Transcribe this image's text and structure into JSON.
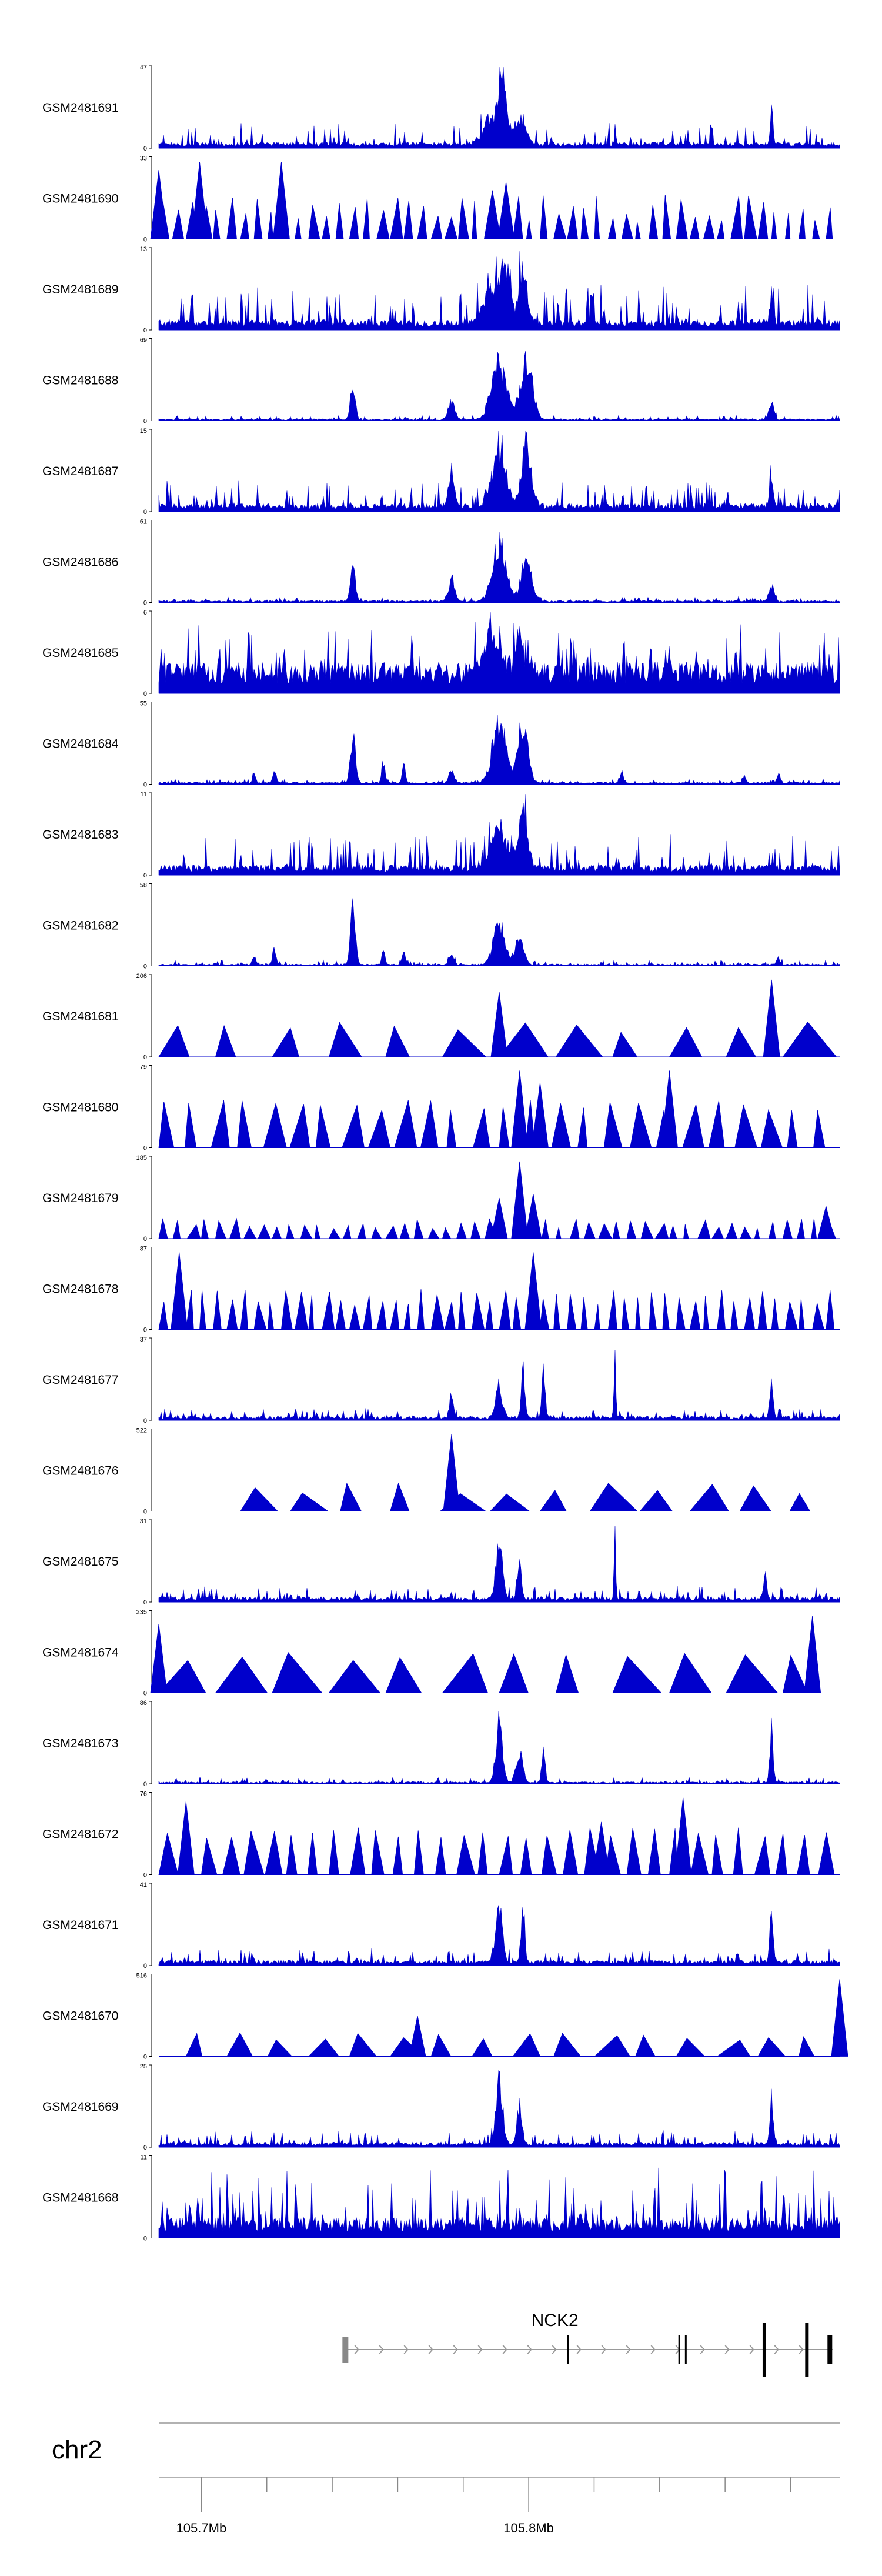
{
  "chart_data": {
    "type": "area",
    "title": "",
    "chromosome": "chr2",
    "x_range_mb": [
      105.687,
      105.895
    ],
    "x_ticks": [
      {
        "value": 105.7,
        "label": "105.7Mb"
      },
      {
        "value": 105.72
      },
      {
        "value": 105.74
      },
      {
        "value": 105.76
      },
      {
        "value": 105.78
      },
      {
        "value": 105.8,
        "label": "105.8Mb"
      },
      {
        "value": 105.82
      },
      {
        "value": 105.84
      },
      {
        "value": 105.86
      },
      {
        "value": 105.88
      }
    ],
    "series_color": "#0000cc",
    "tracks": [
      {
        "name": "GSM2481691",
        "ymax": 47,
        "style": "dense",
        "base": 0.06,
        "noise": 0.25,
        "peaks": [
          {
            "x": 0.49,
            "w": 0.02,
            "h": 0.45
          },
          {
            "x": 0.505,
            "w": 0.008,
            "h": 1.0
          },
          {
            "x": 0.53,
            "w": 0.015,
            "h": 0.35
          },
          {
            "x": 0.9,
            "w": 0.003,
            "h": 0.6
          }
        ]
      },
      {
        "name": "GSM2481690",
        "ymax": 33,
        "style": "sparse",
        "segments": 50,
        "hmin": 0.2,
        "hmax": 0.55,
        "spikes": [
          {
            "x": 0.0,
            "h": 0.85
          },
          {
            "x": 0.06,
            "h": 0.95
          },
          {
            "x": 0.18,
            "h": 0.95
          },
          {
            "x": 0.49,
            "h": 0.6
          },
          {
            "x": 0.51,
            "h": 0.7
          }
        ]
      },
      {
        "name": "GSM2481689",
        "ymax": 13,
        "style": "dense",
        "base": 0.1,
        "noise": 0.45,
        "peaks": [
          {
            "x": 0.49,
            "w": 0.02,
            "h": 0.55
          },
          {
            "x": 0.51,
            "w": 0.01,
            "h": 0.85
          },
          {
            "x": 0.535,
            "w": 0.01,
            "h": 0.8
          },
          {
            "x": 0.9,
            "w": 0.004,
            "h": 0.5
          }
        ]
      },
      {
        "name": "GSM2481688",
        "ymax": 69,
        "style": "dense",
        "base": 0.02,
        "noise": 0.05,
        "peaks": [
          {
            "x": 0.285,
            "w": 0.006,
            "h": 0.5
          },
          {
            "x": 0.43,
            "w": 0.008,
            "h": 0.3
          },
          {
            "x": 0.5,
            "w": 0.018,
            "h": 0.85
          },
          {
            "x": 0.54,
            "w": 0.014,
            "h": 0.95
          },
          {
            "x": 0.9,
            "w": 0.006,
            "h": 0.25
          }
        ]
      },
      {
        "name": "GSM2481687",
        "ymax": 15,
        "style": "dense",
        "base": 0.08,
        "noise": 0.3,
        "peaks": [
          {
            "x": 0.43,
            "w": 0.008,
            "h": 0.4
          },
          {
            "x": 0.5,
            "w": 0.018,
            "h": 0.75
          },
          {
            "x": 0.54,
            "w": 0.012,
            "h": 0.95
          },
          {
            "x": 0.9,
            "w": 0.005,
            "h": 0.35
          }
        ]
      },
      {
        "name": "GSM2481686",
        "ymax": 61,
        "style": "dense",
        "base": 0.02,
        "noise": 0.05,
        "peaks": [
          {
            "x": 0.285,
            "w": 0.006,
            "h": 0.55
          },
          {
            "x": 0.43,
            "w": 0.008,
            "h": 0.3
          },
          {
            "x": 0.5,
            "w": 0.016,
            "h": 0.95
          },
          {
            "x": 0.54,
            "w": 0.012,
            "h": 0.7
          },
          {
            "x": 0.9,
            "w": 0.006,
            "h": 0.25
          }
        ]
      },
      {
        "name": "GSM2481685",
        "ymax": 6,
        "style": "dense",
        "base": 0.3,
        "noise": 0.5,
        "peaks": [
          {
            "x": 0.49,
            "w": 0.02,
            "h": 0.6
          },
          {
            "x": 0.53,
            "w": 0.01,
            "h": 0.55
          }
        ]
      },
      {
        "name": "GSM2481684",
        "ymax": 55,
        "style": "dense",
        "base": 0.02,
        "noise": 0.04,
        "peaks": [
          {
            "x": 0.14,
            "w": 0.004,
            "h": 0.15
          },
          {
            "x": 0.17,
            "w": 0.004,
            "h": 0.2
          },
          {
            "x": 0.285,
            "w": 0.006,
            "h": 0.7
          },
          {
            "x": 0.33,
            "w": 0.004,
            "h": 0.35
          },
          {
            "x": 0.36,
            "w": 0.004,
            "h": 0.3
          },
          {
            "x": 0.43,
            "w": 0.006,
            "h": 0.2
          },
          {
            "x": 0.5,
            "w": 0.016,
            "h": 0.95
          },
          {
            "x": 0.535,
            "w": 0.012,
            "h": 0.95
          },
          {
            "x": 0.68,
            "w": 0.004,
            "h": 0.15
          },
          {
            "x": 0.86,
            "w": 0.004,
            "h": 0.1
          },
          {
            "x": 0.91,
            "w": 0.004,
            "h": 0.15
          }
        ]
      },
      {
        "name": "GSM2481683",
        "ymax": 11,
        "style": "dense",
        "base": 0.1,
        "noise": 0.4,
        "peaks": [
          {
            "x": 0.5,
            "w": 0.02,
            "h": 0.6
          },
          {
            "x": 0.535,
            "w": 0.012,
            "h": 0.8
          }
        ]
      },
      {
        "name": "GSM2481682",
        "ymax": 58,
        "style": "dense",
        "base": 0.02,
        "noise": 0.05,
        "peaks": [
          {
            "x": 0.14,
            "w": 0.004,
            "h": 0.15
          },
          {
            "x": 0.17,
            "w": 0.004,
            "h": 0.25
          },
          {
            "x": 0.285,
            "w": 0.006,
            "h": 0.95
          },
          {
            "x": 0.33,
            "w": 0.004,
            "h": 0.25
          },
          {
            "x": 0.36,
            "w": 0.004,
            "h": 0.2
          },
          {
            "x": 0.43,
            "w": 0.006,
            "h": 0.15
          },
          {
            "x": 0.5,
            "w": 0.014,
            "h": 0.65
          },
          {
            "x": 0.53,
            "w": 0.01,
            "h": 0.4
          },
          {
            "x": 0.91,
            "w": 0.004,
            "h": 0.1
          }
        ]
      },
      {
        "name": "GSM2481681",
        "ymax": 206,
        "style": "sparse",
        "segments": 12,
        "hmin": 0.3,
        "hmax": 0.45,
        "spikes": [
          {
            "x": 0.5,
            "h": 0.8
          },
          {
            "x": 0.9,
            "h": 0.95
          }
        ]
      },
      {
        "name": "GSM2481680",
        "ymax": 79,
        "style": "sparse",
        "segments": 26,
        "hmin": 0.45,
        "hmax": 0.6,
        "spikes": [
          {
            "x": 0.53,
            "h": 0.95
          },
          {
            "x": 0.56,
            "h": 0.8
          },
          {
            "x": 0.75,
            "h": 0.95
          }
        ]
      },
      {
        "name": "GSM2481679",
        "ymax": 185,
        "style": "sparse",
        "segments": 48,
        "hmin": 0.12,
        "hmax": 0.25,
        "spikes": [
          {
            "x": 0.5,
            "h": 0.5
          },
          {
            "x": 0.53,
            "h": 0.95
          },
          {
            "x": 0.55,
            "h": 0.55
          },
          {
            "x": 0.98,
            "h": 0.4
          }
        ]
      },
      {
        "name": "GSM2481678",
        "ymax": 87,
        "style": "sparse",
        "segments": 50,
        "hmin": 0.3,
        "hmax": 0.5,
        "spikes": [
          {
            "x": 0.03,
            "h": 0.95
          },
          {
            "x": 0.55,
            "h": 0.95
          }
        ]
      },
      {
        "name": "GSM2481677",
        "ymax": 37,
        "style": "dense",
        "base": 0.04,
        "noise": 0.1,
        "peaks": [
          {
            "x": 0.43,
            "w": 0.004,
            "h": 0.4
          },
          {
            "x": 0.5,
            "w": 0.008,
            "h": 0.45
          },
          {
            "x": 0.535,
            "w": 0.004,
            "h": 0.95
          },
          {
            "x": 0.565,
            "w": 0.004,
            "h": 0.8
          },
          {
            "x": 0.67,
            "w": 0.002,
            "h": 0.95
          },
          {
            "x": 0.9,
            "w": 0.004,
            "h": 0.6
          }
        ]
      },
      {
        "name": "GSM2481676",
        "ymax": 522,
        "style": "sparse",
        "segments": 12,
        "hmin": 0.2,
        "hmax": 0.35,
        "start": 0.12,
        "spikes": [
          {
            "x": 0.43,
            "h": 0.95
          }
        ]
      },
      {
        "name": "GSM2481675",
        "ymax": 31,
        "style": "dense",
        "base": 0.05,
        "noise": 0.15,
        "peaks": [
          {
            "x": 0.5,
            "w": 0.008,
            "h": 0.8
          },
          {
            "x": 0.53,
            "w": 0.005,
            "h": 0.5
          },
          {
            "x": 0.67,
            "w": 0.002,
            "h": 0.95
          },
          {
            "x": 0.89,
            "w": 0.004,
            "h": 0.35
          }
        ]
      },
      {
        "name": "GSM2481674",
        "ymax": 235,
        "style": "sparse",
        "segments": 12,
        "hmin": 0.4,
        "hmax": 0.5,
        "spikes": [
          {
            "x": 0.0,
            "h": 0.85
          },
          {
            "x": 0.96,
            "h": 0.95
          }
        ]
      },
      {
        "name": "GSM2481673",
        "ymax": 86,
        "style": "dense",
        "base": 0.02,
        "noise": 0.06,
        "peaks": [
          {
            "x": 0.5,
            "w": 0.008,
            "h": 0.95
          },
          {
            "x": 0.53,
            "w": 0.008,
            "h": 0.45
          },
          {
            "x": 0.565,
            "w": 0.004,
            "h": 0.55
          },
          {
            "x": 0.9,
            "w": 0.004,
            "h": 0.8
          }
        ]
      },
      {
        "name": "GSM2481672",
        "ymax": 76,
        "style": "sparse",
        "segments": 32,
        "hmin": 0.45,
        "hmax": 0.6,
        "spikes": [
          {
            "x": 0.04,
            "h": 0.9
          },
          {
            "x": 0.65,
            "h": 0.65
          },
          {
            "x": 0.77,
            "h": 0.95
          }
        ]
      },
      {
        "name": "GSM2481671",
        "ymax": 41,
        "style": "dense",
        "base": 0.05,
        "noise": 0.15,
        "peaks": [
          {
            "x": 0.5,
            "w": 0.008,
            "h": 0.8
          },
          {
            "x": 0.535,
            "w": 0.004,
            "h": 0.9
          },
          {
            "x": 0.9,
            "w": 0.004,
            "h": 0.85
          }
        ]
      },
      {
        "name": "GSM2481670",
        "ymax": 516,
        "style": "sparse",
        "segments": 16,
        "hmin": 0.2,
        "hmax": 0.3,
        "start": 0.04,
        "spikes": [
          {
            "x": 0.38,
            "h": 0.5
          },
          {
            "x": 1.0,
            "h": 0.95
          }
        ]
      },
      {
        "name": "GSM2481669",
        "ymax": 25,
        "style": "dense",
        "base": 0.05,
        "noise": 0.15,
        "peaks": [
          {
            "x": 0.5,
            "w": 0.008,
            "h": 0.95
          },
          {
            "x": 0.53,
            "w": 0.006,
            "h": 0.55
          },
          {
            "x": 0.9,
            "w": 0.004,
            "h": 0.7
          }
        ]
      },
      {
        "name": "GSM2481668",
        "ymax": 11,
        "style": "dense",
        "base": 0.2,
        "noise": 0.65,
        "peaks": []
      }
    ],
    "gene": {
      "name": "NCK2",
      "strand": "+",
      "start_mb": 105.744,
      "end_mb": 105.893,
      "exons_mb": [
        105.744,
        105.812,
        105.846,
        105.848,
        105.872,
        105.885,
        105.892
      ]
    }
  }
}
